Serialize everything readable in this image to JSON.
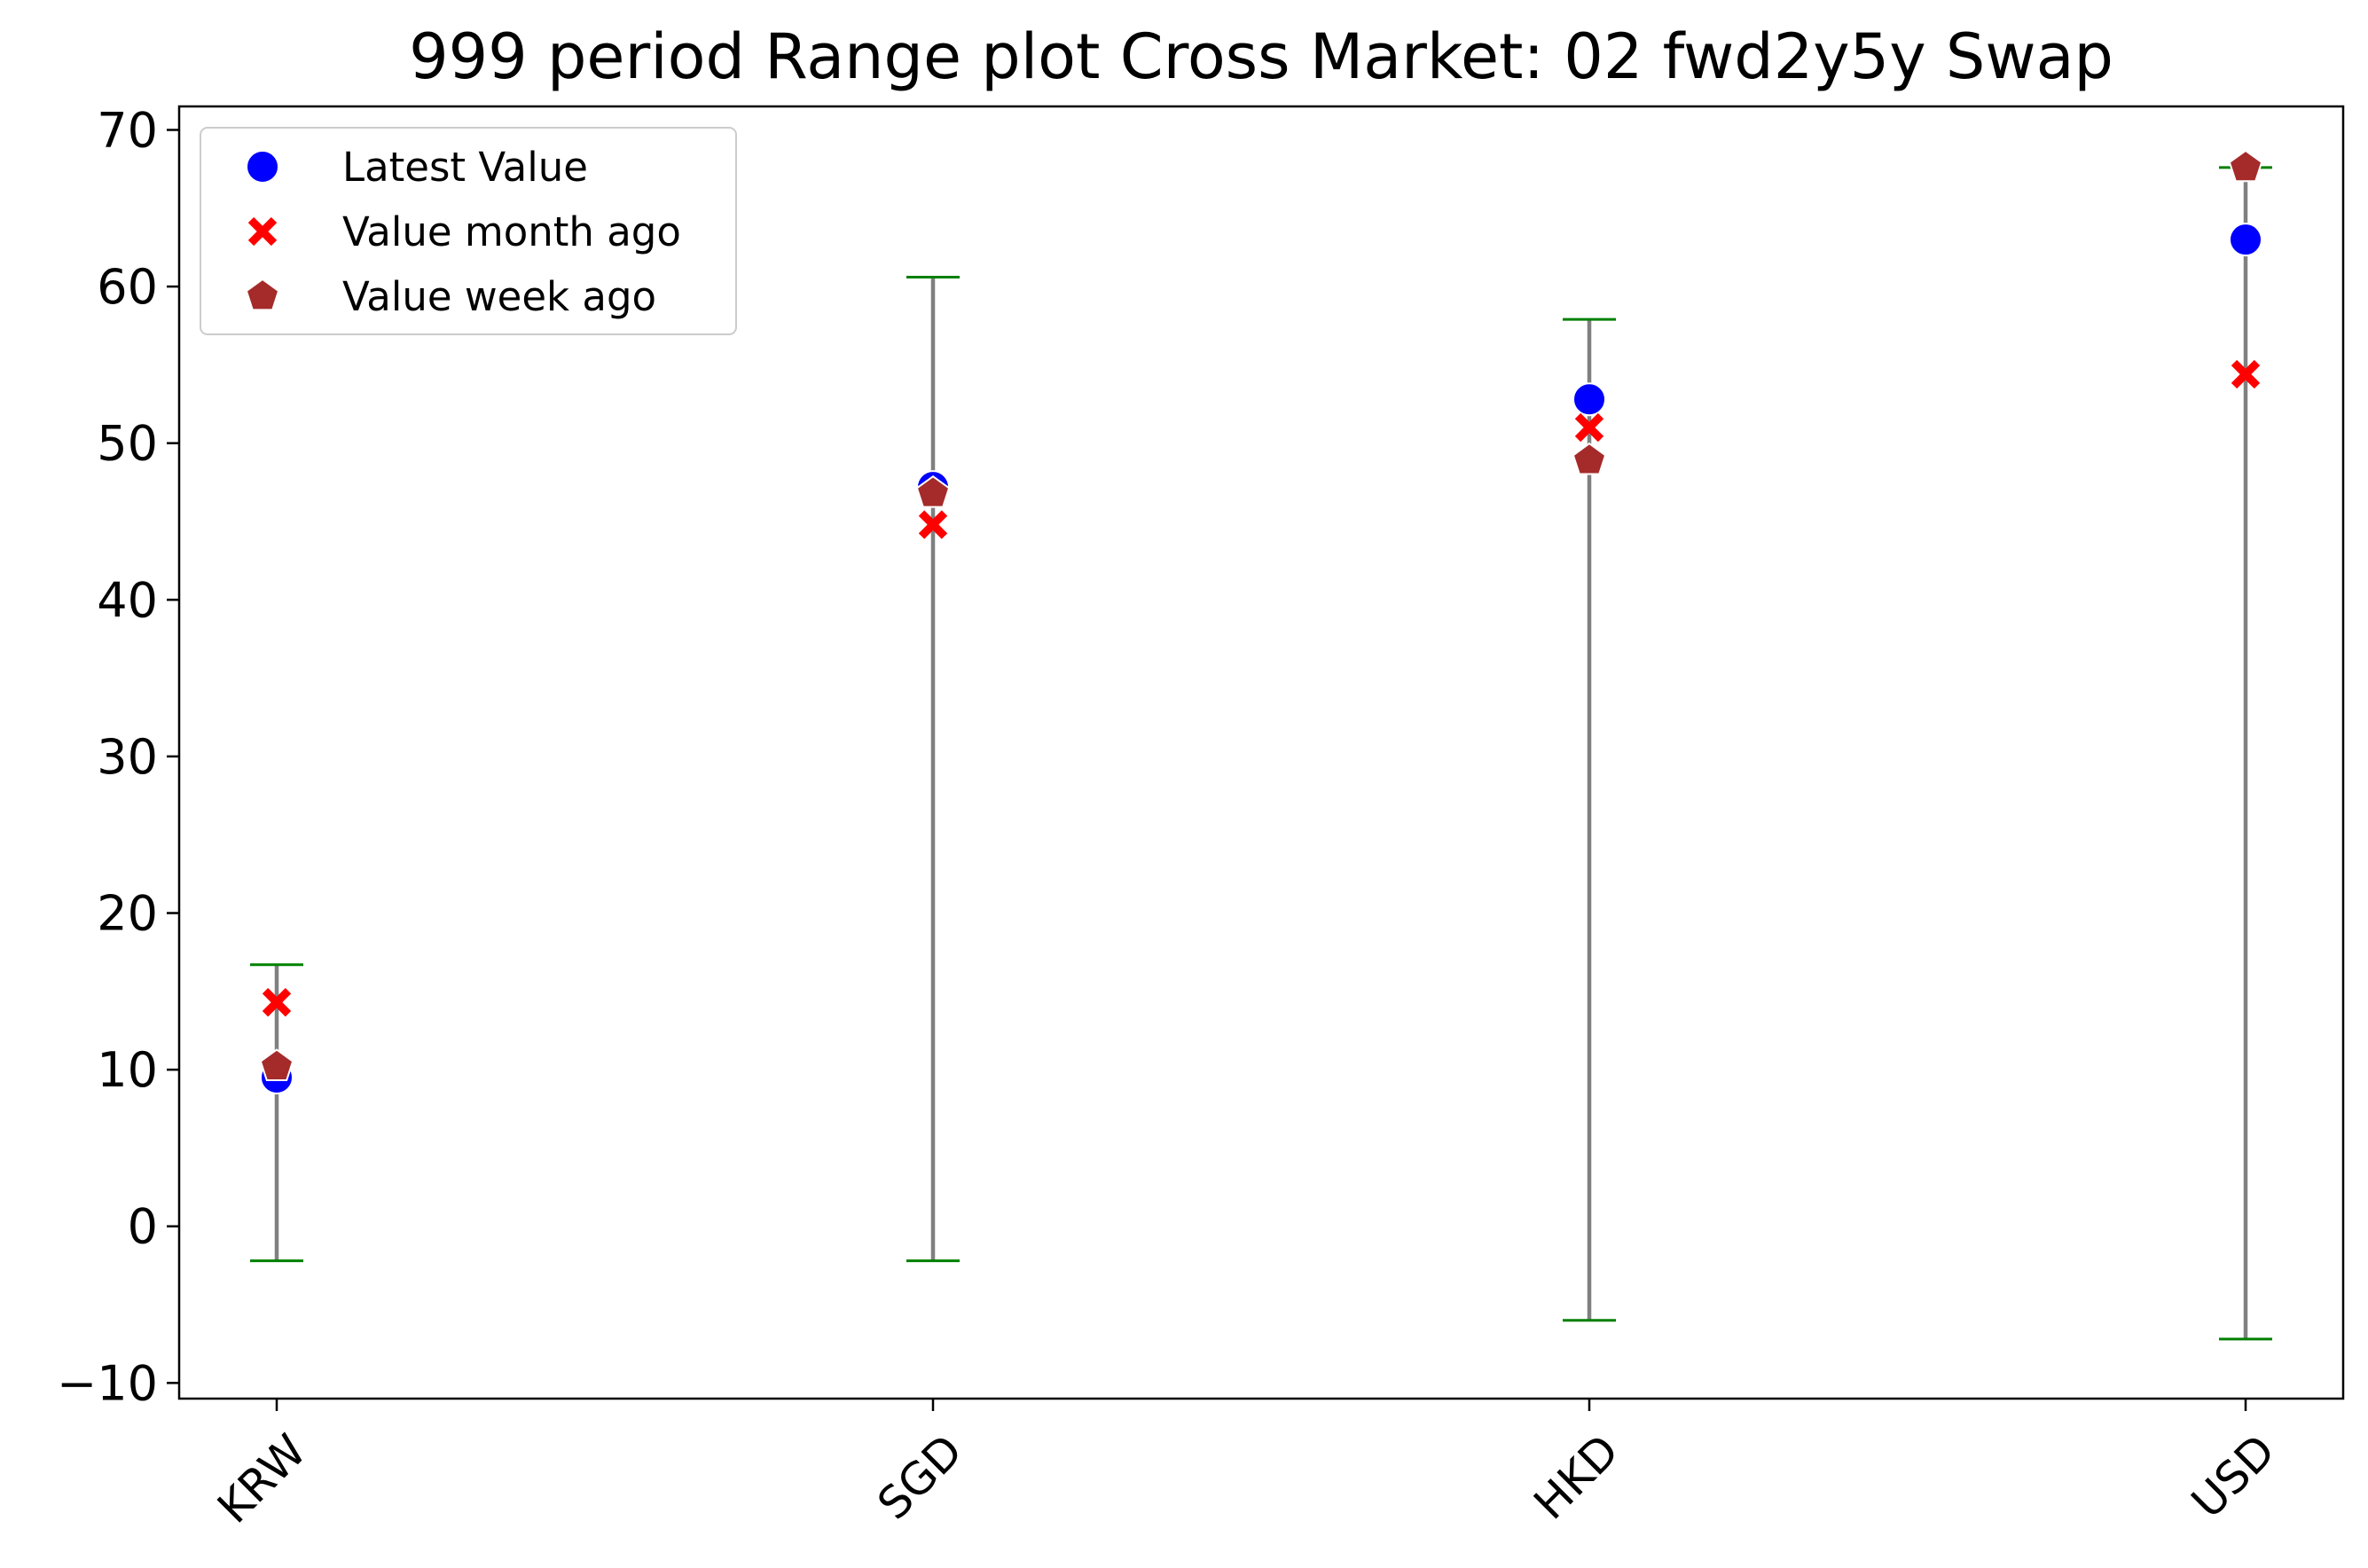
{
  "chart_data": {
    "type": "scatter",
    "title": "999 period Range plot Cross Market: 02 fwd2y5y Swap",
    "categories": [
      "KRW",
      "SGD",
      "HKD",
      "USD"
    ],
    "ylim": [
      -11,
      71.5
    ],
    "yticks": [
      -10,
      0,
      10,
      20,
      30,
      40,
      50,
      60,
      70
    ],
    "ytick_labels": [
      "−10",
      "0",
      "10",
      "20",
      "30",
      "40",
      "50",
      "60",
      "70"
    ],
    "grid": false,
    "legend_position": "top-left",
    "ranges": [
      {
        "category": "KRW",
        "min": -2.2,
        "max": 16.7
      },
      {
        "category": "SGD",
        "min": -2.2,
        "max": 60.6
      },
      {
        "category": "HKD",
        "min": -6.0,
        "max": 57.9
      },
      {
        "category": "USD",
        "min": -7.2,
        "max": 67.6
      }
    ],
    "series": [
      {
        "name": "Latest Value",
        "marker": "circle",
        "color": "#0000ff",
        "values": [
          9.5,
          47.2,
          52.8,
          63.0
        ]
      },
      {
        "name": "Value month ago",
        "marker": "x",
        "color": "#ff0000",
        "values": [
          14.3,
          44.8,
          51.0,
          54.4
        ]
      },
      {
        "name": "Value week ago",
        "marker": "pentagon",
        "color": "#a52a2a",
        "values": [
          10.2,
          46.8,
          48.9,
          67.6
        ]
      }
    ],
    "colors": {
      "range_line": "#808080",
      "range_cap": "#008000"
    }
  }
}
